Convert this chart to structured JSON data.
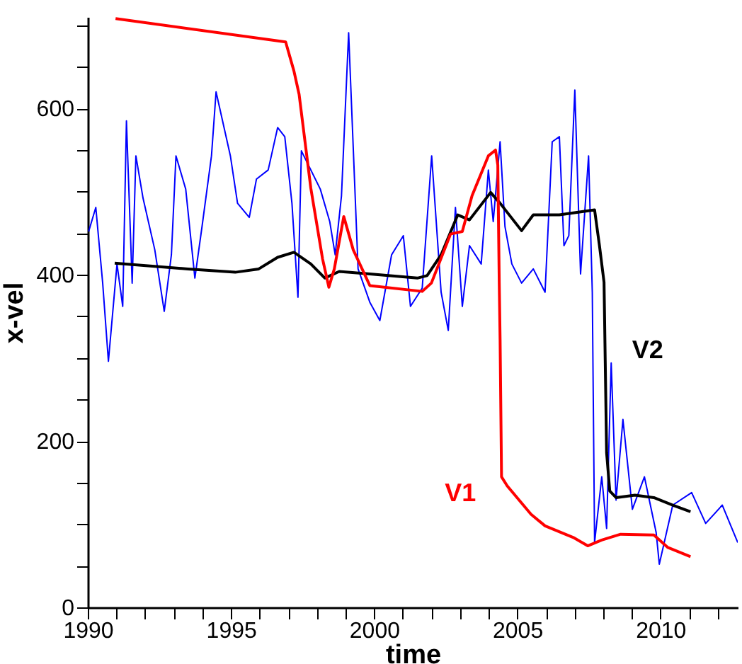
{
  "chart_data": {
    "type": "line",
    "xlabel": "time",
    "ylabel": "x-vel",
    "xlim": [
      1990,
      2012.7
    ],
    "ylim": [
      0,
      710
    ],
    "xticks": [
      1990,
      {
        "value": 1991,
        "label": null
      },
      {
        "value": 1992,
        "label": null
      },
      {
        "value": 1993,
        "label": null
      },
      {
        "value": 1994,
        "label": null
      },
      1995,
      {
        "value": 1996,
        "label": null
      },
      {
        "value": 1997,
        "label": null
      },
      {
        "value": 1998,
        "label": null
      },
      {
        "value": 1999,
        "label": null
      },
      2000,
      {
        "value": 2001,
        "label": null
      },
      {
        "value": 2002,
        "label": null
      },
      {
        "value": 2003,
        "label": null
      },
      {
        "value": 2004,
        "label": null
      },
      2005,
      {
        "value": 2006,
        "label": null
      },
      {
        "value": 2007,
        "label": null
      },
      {
        "value": 2008,
        "label": null
      },
      {
        "value": 2009,
        "label": null
      },
      2010,
      {
        "value": 2011,
        "label": null
      },
      {
        "value": 2012,
        "label": null
      }
    ],
    "yticks": [
      0,
      {
        "value": 50,
        "label": null
      },
      {
        "value": 100,
        "label": null
      },
      {
        "value": 150,
        "label": null
      },
      200,
      {
        "value": 250,
        "label": null
      },
      {
        "value": 300,
        "label": null
      },
      {
        "value": 350,
        "label": null
      },
      400,
      {
        "value": 450,
        "label": null
      },
      {
        "value": 500,
        "label": null
      },
      {
        "value": 550,
        "label": null
      },
      600,
      {
        "value": 650,
        "label": null
      },
      {
        "value": 700,
        "label": null
      }
    ],
    "grid": false,
    "line_style": "solid",
    "marker": "none",
    "series": [
      {
        "color": "#0000ff",
        "x": [
          1990.03,
          1990.28,
          1990.52,
          1990.72,
          1991.02,
          1991.22,
          1991.35,
          1991.55,
          1991.68,
          1991.93,
          1992.34,
          1992.67,
          1992.92,
          1993.08,
          1993.42,
          1993.74,
          1993.99,
          1994.32,
          1994.48,
          1994.98,
          1995.23,
          1995.64,
          1995.89,
          1996.3,
          1996.63,
          1996.88,
          1997.13,
          1997.34,
          1997.46,
          1998.12,
          1998.45,
          1998.64,
          1998.86,
          1999.11,
          1999.44,
          1999.85,
          2000.2,
          2000.61,
          2001.02,
          2001.27,
          2001.68,
          2002.01,
          2002.34,
          2002.59,
          2002.84,
          2003.08,
          2003.33,
          2003.74,
          2003.99,
          2004.16,
          2004.4,
          2004.57,
          2004.81,
          2005.15,
          2005.56,
          2005.97,
          2006.22,
          2006.47,
          2006.63,
          2006.8,
          2007.01,
          2007.21,
          2007.49,
          2007.62,
          2007.7,
          2007.95,
          2008.12,
          2008.28,
          2008.45,
          2008.69,
          2009.02,
          2009.44,
          2009.85,
          2009.96,
          2010.43,
          2011.09,
          2011.58,
          2012.16,
          2012.7
        ],
        "values": [
          452,
          481,
          390,
          296,
          413,
          362,
          585,
          390,
          543,
          492,
          430,
          356,
          424,
          543,
          503,
          396,
          458,
          543,
          620,
          543,
          486,
          469,
          515,
          526,
          577,
          566,
          486,
          373,
          549,
          503,
          464,
          424,
          495,
          691,
          407,
          367,
          345,
          424,
          447,
          362,
          384,
          543,
          379,
          333,
          481,
          362,
          435,
          413,
          526,
          464,
          560,
          458,
          413,
          390,
          407,
          379,
          560,
          566,
          435,
          447,
          622,
          401,
          543,
          379,
          78,
          157,
          95,
          294,
          129,
          226,
          118,
          157,
          90,
          52,
          123,
          138,
          101,
          123,
          78
        ]
      },
      {
        "name": "V2",
        "color": "#000000",
        "x": [
          1990.94,
          1993.5,
          1995.15,
          1995.97,
          1996.63,
          1997.2,
          1997.79,
          1998.28,
          1998.78,
          1999.85,
          2001.51,
          2001.85,
          2002.34,
          2002.92,
          2003.33,
          2004.07,
          2004.4,
          2005.15,
          2005.56,
          2006.47,
          2007.7,
          2007.87,
          2008.03,
          2008.12,
          2008.23,
          2008.45,
          2009.11,
          2009.77,
          2010.43,
          2011.05
        ],
        "values": [
          414,
          407,
          403,
          407,
          421,
          427,
          413,
          396,
          404,
          401,
          396,
          399,
          424,
          472,
          466,
          499,
          486,
          453,
          472,
          472,
          478,
          435,
          391,
          186,
          140,
          132,
          135,
          132,
          123,
          115
        ]
      },
      {
        "name": "V1",
        "color": "#ff0000",
        "x": [
          1990.97,
          1996.91,
          1997.2,
          1997.38,
          1997.79,
          1998.2,
          1998.42,
          1998.61,
          1998.94,
          1999.27,
          1999.85,
          2001.68,
          2002.0,
          2002.67,
          2003.08,
          2003.42,
          2003.99,
          2004.24,
          2004.32,
          2004.37,
          2004.4,
          2004.45,
          2004.65,
          2005.48,
          2005.97,
          2006.96,
          2007.46,
          2007.95,
          2008.61,
          2009.77,
          2010.26,
          2011.05
        ],
        "values": [
          708,
          680,
          645,
          617,
          504,
          419,
          385,
          407,
          470,
          430,
          387,
          380,
          390,
          449,
          452,
          495,
          543,
          550,
          532,
          390,
          322,
          157,
          146,
          112,
          98,
          84,
          74,
          81,
          88,
          87,
          72,
          61
        ]
      }
    ]
  }
}
